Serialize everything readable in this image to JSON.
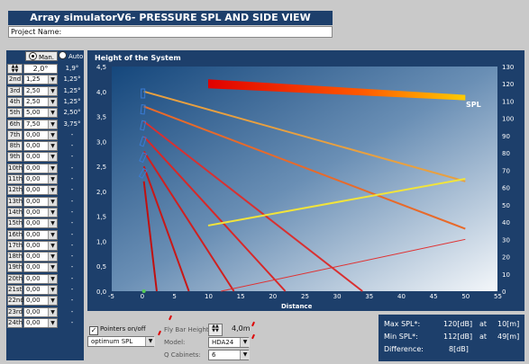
{
  "window": {
    "title": "Array simulatorV6- PRESSURE SPL AND SIDE VIEW"
  },
  "project": {
    "label": "Project Name:"
  },
  "mode": {
    "man_label": "Man.",
    "auto_label": "Auto"
  },
  "stepper_value": "2,0°",
  "rows": [
    {
      "label": "1st",
      "value": "",
      "angle": "1,9°"
    },
    {
      "label": "2nd",
      "value": "1,25",
      "angle": "1,25°"
    },
    {
      "label": "3rd",
      "value": "2,50",
      "angle": "1,25°"
    },
    {
      "label": "4th",
      "value": "2,50",
      "angle": "1,25°"
    },
    {
      "label": "5th",
      "value": "5,00",
      "angle": "2,50°"
    },
    {
      "label": "6th",
      "value": "7,50",
      "angle": "3,75°"
    },
    {
      "label": "7th",
      "value": "0,00",
      "angle": "-"
    },
    {
      "label": "8th",
      "value": "0,00",
      "angle": "-"
    },
    {
      "label": "9th",
      "value": "0,00",
      "angle": "-"
    },
    {
      "label": "10th",
      "value": "0,00",
      "angle": "-"
    },
    {
      "label": "11th",
      "value": "0,00",
      "angle": "-"
    },
    {
      "label": "12th",
      "value": "0,00",
      "angle": "-"
    },
    {
      "label": "13th",
      "value": "0,00",
      "angle": "-"
    },
    {
      "label": "14th",
      "value": "0,00",
      "angle": "-"
    },
    {
      "label": "15th",
      "value": "0,00",
      "angle": "-"
    },
    {
      "label": "16th",
      "value": "0,00",
      "angle": "-"
    },
    {
      "label": "17th",
      "value": "0,00",
      "angle": "-"
    },
    {
      "label": "18th",
      "value": "0,00",
      "angle": "-"
    },
    {
      "label": "19th",
      "value": "0,00",
      "angle": "-"
    },
    {
      "label": "20th",
      "value": "0,00",
      "angle": "-"
    },
    {
      "label": "21st",
      "value": "0,00",
      "angle": "-"
    },
    {
      "label": "22nd",
      "value": "0,00",
      "angle": "-"
    },
    {
      "label": "23rd",
      "value": "0,00",
      "angle": "-"
    },
    {
      "label": "24th",
      "value": "0,00",
      "angle": "-"
    }
  ],
  "chart": {
    "title": "Height of the System",
    "xlabel": "Distance",
    "spl_label": "SPL",
    "left_ticks": [
      "4,5",
      "4,0",
      "3,5",
      "3,0",
      "2,5",
      "2,0",
      "1,5",
      "1,0",
      "0,5",
      "0,0"
    ],
    "right_ticks": [
      "130",
      "120",
      "110",
      "100",
      "90",
      "80",
      "70",
      "60",
      "50",
      "40",
      "30",
      "20",
      "10",
      "0"
    ],
    "x_ticks": [
      "-5",
      "0",
      "5",
      "10",
      "15",
      "20",
      "25",
      "30",
      "35",
      "40",
      "45",
      "50",
      "55"
    ]
  },
  "chart_data": {
    "type": "line",
    "title": "Height of the System",
    "xlabel": "Distance",
    "xlim": [
      -5,
      55
    ],
    "ylim_left": [
      0,
      4.5
    ],
    "ylim_right": [
      0,
      130
    ],
    "rays": [
      {
        "from": [
          0,
          4.0
        ],
        "to": [
          50,
          2.2
        ]
      },
      {
        "from": [
          0,
          3.7
        ],
        "to": [
          50,
          1.25
        ]
      },
      {
        "from": [
          0,
          3.4
        ],
        "to": [
          34,
          0
        ]
      },
      {
        "from": [
          0,
          3.1
        ],
        "to": [
          22,
          0
        ]
      },
      {
        "from": [
          0,
          2.8
        ],
        "to": [
          14,
          0
        ]
      },
      {
        "from": [
          0,
          2.5
        ],
        "to": [
          7,
          0
        ]
      },
      {
        "from": [
          0,
          2.2
        ],
        "to": [
          2,
          0
        ]
      }
    ],
    "series": [
      {
        "name": "SPL",
        "x": [
          10,
          50
        ],
        "y": [
          120,
          112
        ]
      },
      {
        "x": [
          10,
          50
        ],
        "y": [
          38,
          65
        ]
      },
      {
        "x": [
          12,
          50
        ],
        "y": [
          0,
          30
        ]
      }
    ]
  },
  "controls": {
    "pointers_label": "Pointers on/off",
    "optimum_value": "optimum SPL",
    "fly_bar_label": "Fly Bar Height:",
    "fly_bar_value": "4,0m",
    "model_label": "Model:",
    "model_value": "HDA24",
    "q_label": "Q Cabinets:",
    "q_value": "6"
  },
  "info": {
    "max_label": "Max SPL*:",
    "max_value": "120[dB]",
    "max_at": "at",
    "max_dist": "10[m]",
    "min_label": "Min SPL*:",
    "min_value": "112[dB]",
    "min_at": "at",
    "min_dist": "49[m]",
    "diff_label": "Difference:",
    "diff_value": "8[dB]"
  },
  "colors": {
    "panel": "#1d3f6b",
    "plot_top": "#1a4b7f",
    "plot_bottom": "#eef3f8"
  }
}
